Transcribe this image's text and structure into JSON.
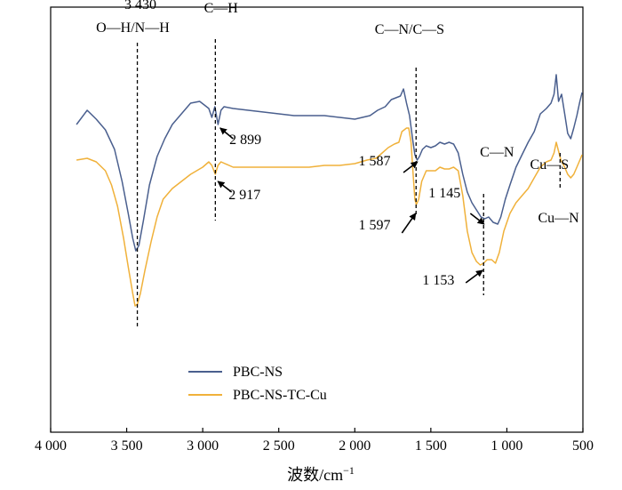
{
  "chart_data": {
    "type": "line",
    "title": "",
    "xlabel": "波数/cm",
    "xlabel_sup": "−1",
    "ylabel": "",
    "xlim": [
      4000,
      500
    ],
    "x_reversed": true,
    "grid": false,
    "legend_placement": "bottom-left",
    "x_ticks": [
      {
        "value": 4000,
        "label": "4 000"
      },
      {
        "value": 3500,
        "label": "3 500"
      },
      {
        "value": 3000,
        "label": "3 000"
      },
      {
        "value": 2500,
        "label": "2 500"
      },
      {
        "value": 2000,
        "label": "2 000"
      },
      {
        "value": 1500,
        "label": "1 500"
      },
      {
        "value": 1000,
        "label": "1 000"
      },
      {
        "value": 500,
        "label": "500"
      }
    ],
    "series": [
      {
        "name": "PBC-NS",
        "color": "#4a5f8e",
        "points": [
          [
            3830,
            0.2
          ],
          [
            3760,
            0.12
          ],
          [
            3700,
            0.17
          ],
          [
            3640,
            0.23
          ],
          [
            3580,
            0.34
          ],
          [
            3530,
            0.52
          ],
          [
            3490,
            0.7
          ],
          [
            3460,
            0.84
          ],
          [
            3440,
            0.91
          ],
          [
            3420,
            0.88
          ],
          [
            3390,
            0.74
          ],
          [
            3350,
            0.54
          ],
          [
            3300,
            0.38
          ],
          [
            3250,
            0.28
          ],
          [
            3200,
            0.2
          ],
          [
            3140,
            0.14
          ],
          [
            3080,
            0.08
          ],
          [
            3020,
            0.07
          ],
          [
            2990,
            0.09
          ],
          [
            2960,
            0.11
          ],
          [
            2940,
            0.16
          ],
          [
            2920,
            0.1
          ],
          [
            2899,
            0.2
          ],
          [
            2880,
            0.12
          ],
          [
            2860,
            0.1
          ],
          [
            2800,
            0.11
          ],
          [
            2700,
            0.12
          ],
          [
            2600,
            0.13
          ],
          [
            2500,
            0.14
          ],
          [
            2400,
            0.15
          ],
          [
            2300,
            0.15
          ],
          [
            2200,
            0.15
          ],
          [
            2100,
            0.16
          ],
          [
            2000,
            0.17
          ],
          [
            1900,
            0.15
          ],
          [
            1850,
            0.12
          ],
          [
            1800,
            0.1
          ],
          [
            1760,
            0.06
          ],
          [
            1730,
            0.05
          ],
          [
            1700,
            0.04
          ],
          [
            1680,
            0.0
          ],
          [
            1660,
            0.08
          ],
          [
            1640,
            0.15
          ],
          [
            1620,
            0.28
          ],
          [
            1605,
            0.37
          ],
          [
            1590,
            0.4
          ],
          [
            1575,
            0.38
          ],
          [
            1555,
            0.34
          ],
          [
            1530,
            0.32
          ],
          [
            1500,
            0.33
          ],
          [
            1470,
            0.32
          ],
          [
            1440,
            0.3
          ],
          [
            1410,
            0.31
          ],
          [
            1380,
            0.3
          ],
          [
            1350,
            0.31
          ],
          [
            1320,
            0.36
          ],
          [
            1290,
            0.48
          ],
          [
            1260,
            0.58
          ],
          [
            1230,
            0.64
          ],
          [
            1200,
            0.68
          ],
          [
            1170,
            0.72
          ],
          [
            1145,
            0.73
          ],
          [
            1120,
            0.72
          ],
          [
            1090,
            0.75
          ],
          [
            1060,
            0.76
          ],
          [
            1040,
            0.72
          ],
          [
            1010,
            0.62
          ],
          [
            980,
            0.54
          ],
          [
            940,
            0.44
          ],
          [
            900,
            0.37
          ],
          [
            860,
            0.3
          ],
          [
            820,
            0.24
          ],
          [
            780,
            0.14
          ],
          [
            740,
            0.11
          ],
          [
            710,
            0.08
          ],
          [
            690,
            0.03
          ],
          [
            675,
            -0.08
          ],
          [
            660,
            0.07
          ],
          [
            640,
            0.03
          ],
          [
            620,
            0.14
          ],
          [
            600,
            0.25
          ],
          [
            580,
            0.28
          ],
          [
            560,
            0.22
          ],
          [
            540,
            0.15
          ],
          [
            520,
            0.07
          ],
          [
            505,
            0.02
          ]
        ]
      },
      {
        "name": "PBC-NS-TC-Cu",
        "color": "#f0b13a",
        "points": [
          [
            3830,
            0.4
          ],
          [
            3760,
            0.39
          ],
          [
            3700,
            0.41
          ],
          [
            3640,
            0.46
          ],
          [
            3600,
            0.54
          ],
          [
            3560,
            0.66
          ],
          [
            3520,
            0.84
          ],
          [
            3490,
            1.0
          ],
          [
            3460,
            1.15
          ],
          [
            3445,
            1.22
          ],
          [
            3430,
            1.21
          ],
          [
            3410,
            1.15
          ],
          [
            3380,
            1.02
          ],
          [
            3340,
            0.86
          ],
          [
            3300,
            0.72
          ],
          [
            3260,
            0.62
          ],
          [
            3200,
            0.56
          ],
          [
            3140,
            0.52
          ],
          [
            3080,
            0.48
          ],
          [
            3040,
            0.46
          ],
          [
            3000,
            0.44
          ],
          [
            2960,
            0.41
          ],
          [
            2940,
            0.43
          ],
          [
            2917,
            0.48
          ],
          [
            2900,
            0.43
          ],
          [
            2880,
            0.41
          ],
          [
            2800,
            0.44
          ],
          [
            2700,
            0.44
          ],
          [
            2600,
            0.44
          ],
          [
            2500,
            0.44
          ],
          [
            2400,
            0.44
          ],
          [
            2300,
            0.44
          ],
          [
            2200,
            0.43
          ],
          [
            2100,
            0.43
          ],
          [
            2000,
            0.42
          ],
          [
            1920,
            0.4
          ],
          [
            1860,
            0.39
          ],
          [
            1820,
            0.36
          ],
          [
            1780,
            0.33
          ],
          [
            1740,
            0.31
          ],
          [
            1710,
            0.3
          ],
          [
            1690,
            0.24
          ],
          [
            1675,
            0.23
          ],
          [
            1660,
            0.22
          ],
          [
            1645,
            0.22
          ],
          [
            1630,
            0.3
          ],
          [
            1615,
            0.5
          ],
          [
            1605,
            0.62
          ],
          [
            1595,
            0.65
          ],
          [
            1580,
            0.62
          ],
          [
            1560,
            0.52
          ],
          [
            1530,
            0.46
          ],
          [
            1500,
            0.46
          ],
          [
            1470,
            0.46
          ],
          [
            1440,
            0.44
          ],
          [
            1410,
            0.45
          ],
          [
            1380,
            0.45
          ],
          [
            1350,
            0.44
          ],
          [
            1320,
            0.46
          ],
          [
            1290,
            0.6
          ],
          [
            1260,
            0.8
          ],
          [
            1230,
            0.92
          ],
          [
            1200,
            0.97
          ],
          [
            1175,
            0.99
          ],
          [
            1153,
            0.98
          ],
          [
            1130,
            0.96
          ],
          [
            1100,
            0.96
          ],
          [
            1075,
            0.98
          ],
          [
            1050,
            0.92
          ],
          [
            1020,
            0.8
          ],
          [
            980,
            0.7
          ],
          [
            940,
            0.64
          ],
          [
            900,
            0.6
          ],
          [
            860,
            0.56
          ],
          [
            820,
            0.5
          ],
          [
            780,
            0.44
          ],
          [
            740,
            0.41
          ],
          [
            710,
            0.4
          ],
          [
            690,
            0.36
          ],
          [
            675,
            0.3
          ],
          [
            660,
            0.35
          ],
          [
            645,
            0.4
          ],
          [
            620,
            0.44
          ],
          [
            600,
            0.48
          ],
          [
            580,
            0.5
          ],
          [
            560,
            0.48
          ],
          [
            540,
            0.44
          ],
          [
            520,
            0.4
          ],
          [
            505,
            0.37
          ]
        ]
      }
    ],
    "annotations": [
      {
        "text": "3 430",
        "x": 3410,
        "y": -0.45,
        "anchor": "middle"
      },
      {
        "text": "O—H/N—H",
        "x": 3460,
        "y": -0.32,
        "anchor": "middle"
      },
      {
        "text": "C—H",
        "x": 2880,
        "y": -0.43,
        "anchor": "middle"
      },
      {
        "text": "2 899",
        "x": 2720,
        "y": 0.31,
        "anchor": "middle"
      },
      {
        "text": "2 917",
        "x": 2725,
        "y": 0.62,
        "anchor": "middle"
      },
      {
        "text": "C—N/C—S",
        "x": 1640,
        "y": -0.31,
        "anchor": "middle"
      },
      {
        "text": "1 587",
        "x": 1870,
        "y": 0.43,
        "anchor": "middle"
      },
      {
        "text": "1 597",
        "x": 1870,
        "y": 0.79,
        "anchor": "middle"
      },
      {
        "text": "C—N",
        "x": 1065,
        "y": 0.38,
        "anchor": "middle"
      },
      {
        "text": "1 145",
        "x": 1410,
        "y": 0.61,
        "anchor": "middle"
      },
      {
        "text": "1 153",
        "x": 1450,
        "y": 1.1,
        "anchor": "middle"
      },
      {
        "text": "Cu—S",
        "x": 720,
        "y": 0.45,
        "anchor": "middle"
      },
      {
        "text": "Cu—N",
        "x": 660,
        "y": 0.75,
        "anchor": "middle"
      }
    ],
    "guide_lines": [
      {
        "x": 3430,
        "y1": -0.26,
        "y2": 1.34
      },
      {
        "x": 2917,
        "y1": -0.28,
        "y2": 0.74
      },
      {
        "x": 1597,
        "y1": -0.12,
        "y2": 0.72
      },
      {
        "x": 1153,
        "y1": 0.59,
        "y2": 1.16
      },
      {
        "x": 650,
        "y1": 0.36,
        "y2": 0.56
      }
    ],
    "arrows": [
      {
        "from": [
          2800,
          0.28
        ],
        "to": [
          2885,
          0.22
        ]
      },
      {
        "from": [
          2810,
          0.58
        ],
        "to": [
          2900,
          0.52
        ]
      },
      {
        "from": [
          1680,
          0.47
        ],
        "to": [
          1588,
          0.41
        ]
      },
      {
        "from": [
          1690,
          0.81
        ],
        "to": [
          1600,
          0.7
        ]
      },
      {
        "from": [
          1240,
          0.7
        ],
        "to": [
          1150,
          0.76
        ]
      },
      {
        "from": [
          1270,
          1.09
        ],
        "to": [
          1160,
          1.02
        ]
      }
    ]
  }
}
